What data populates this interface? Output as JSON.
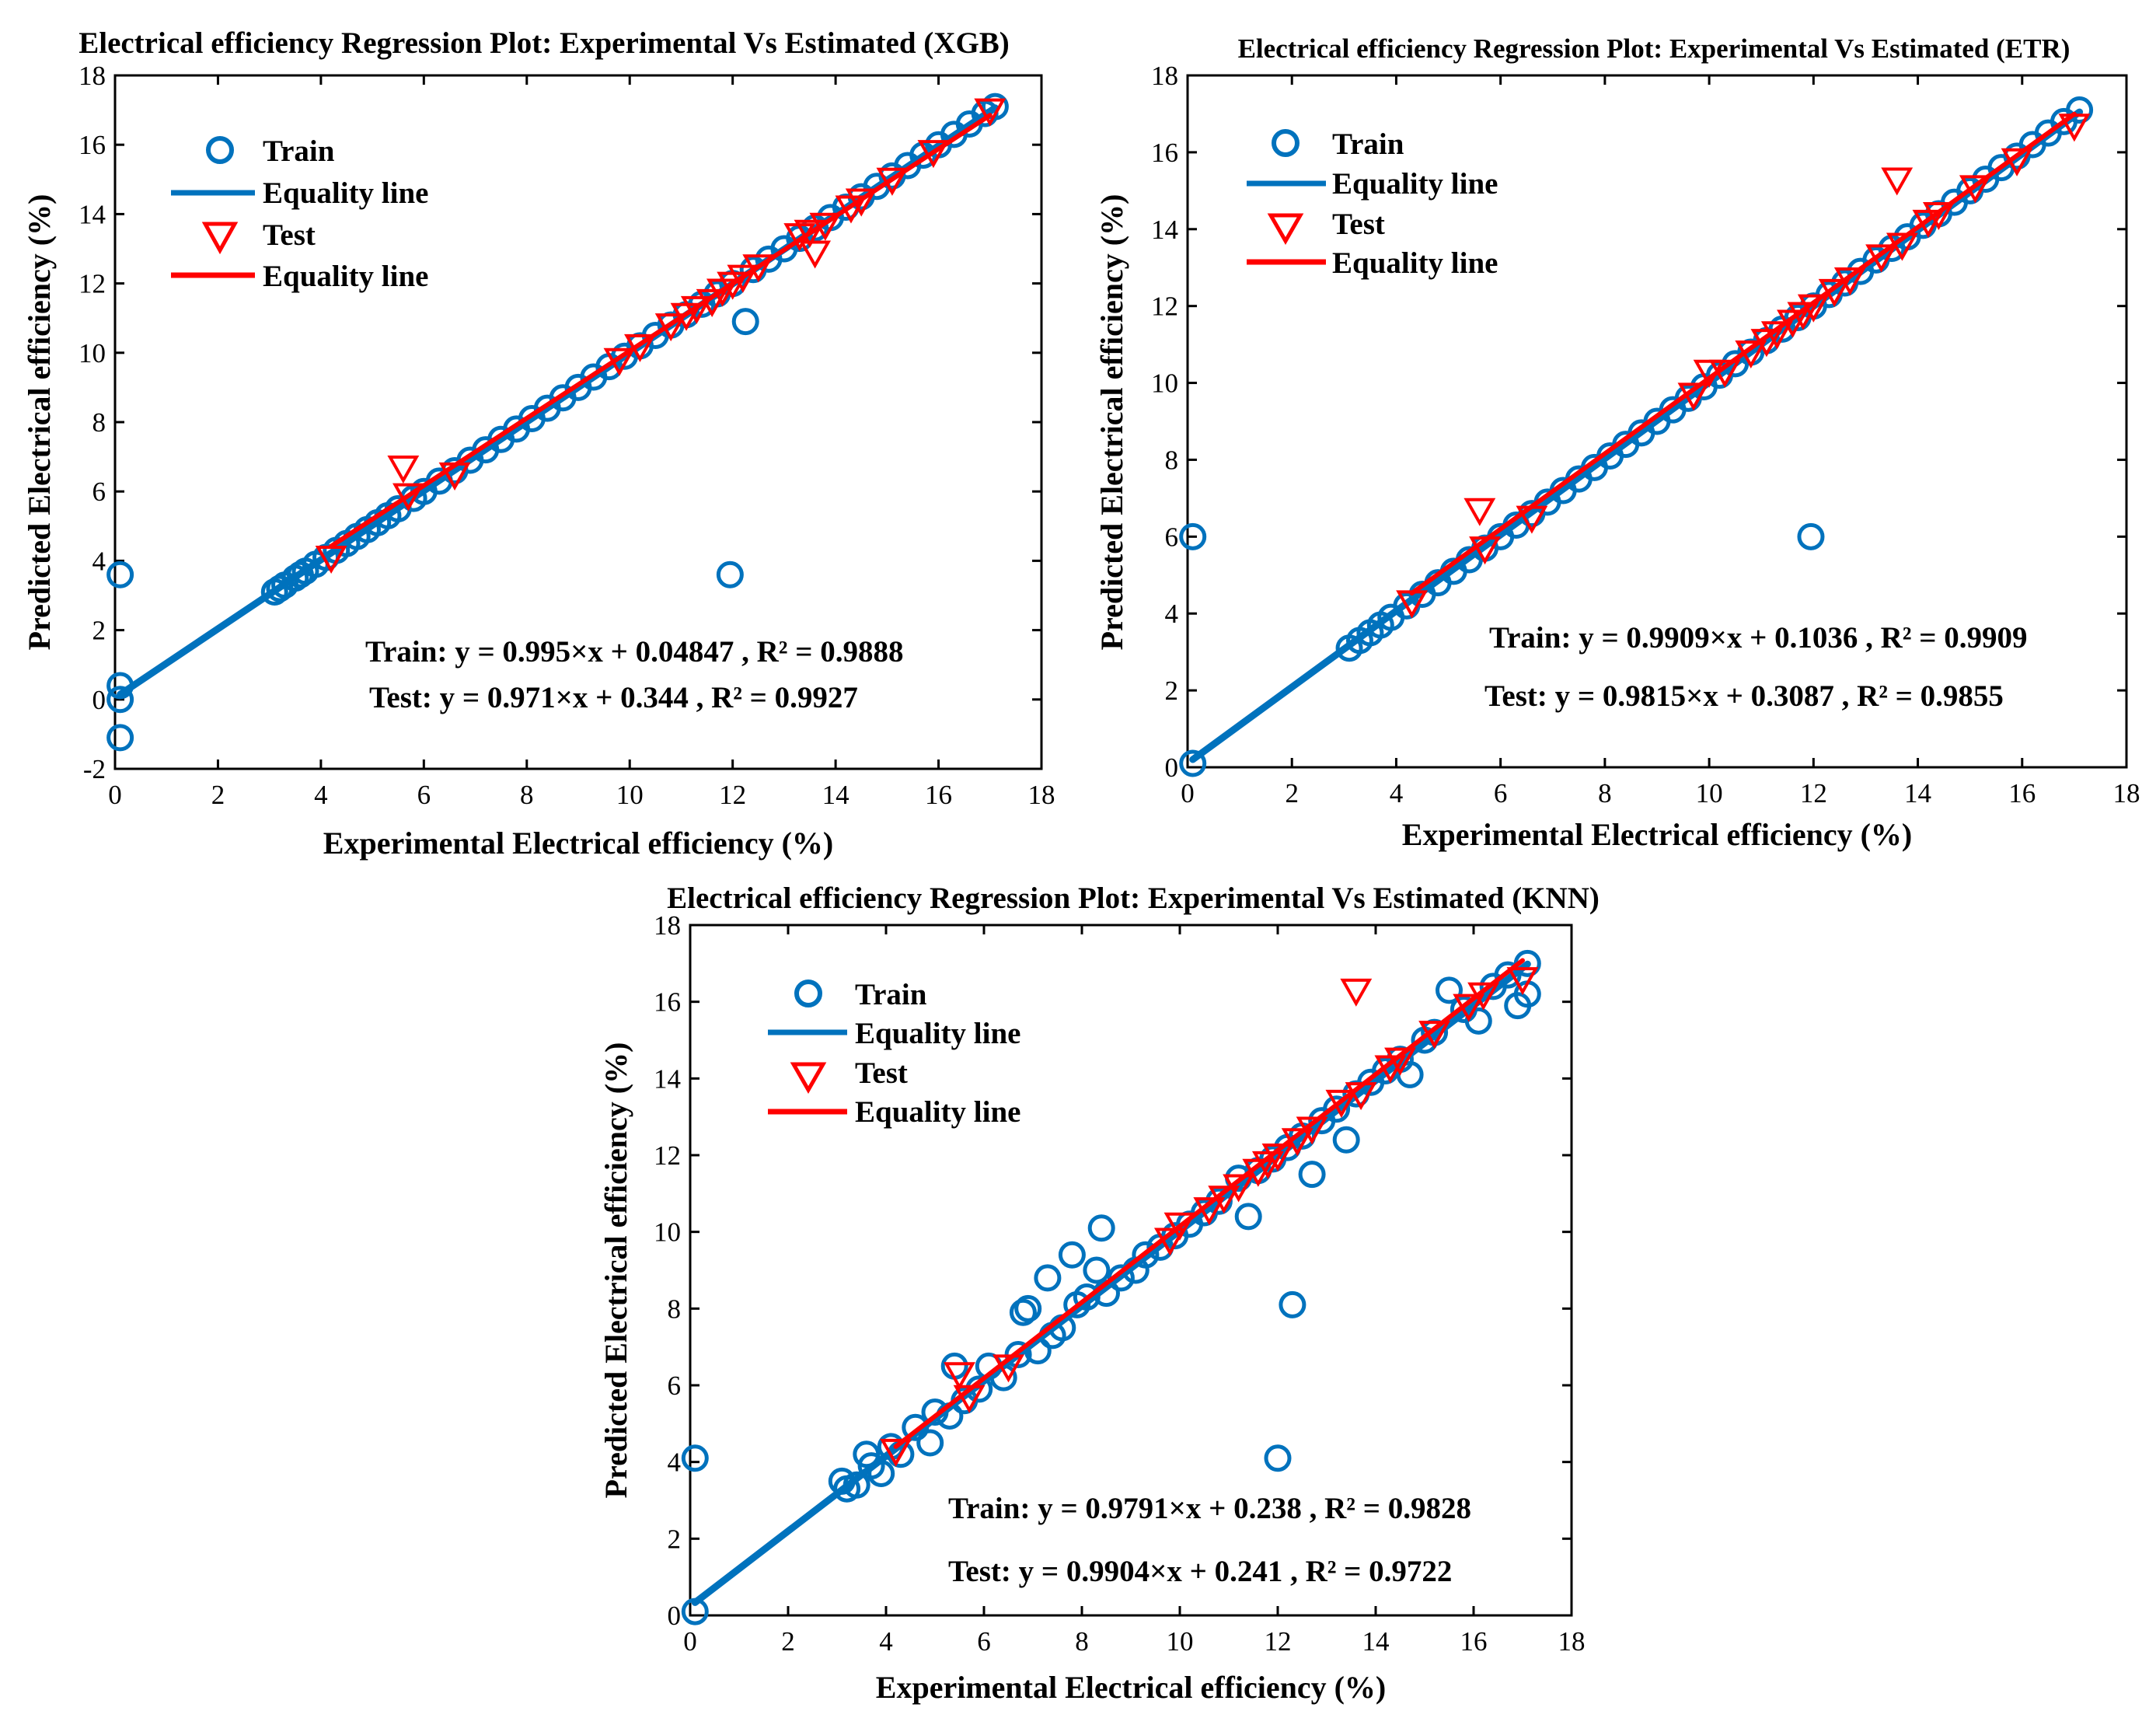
{
  "charts": [
    {
      "id": "xgb",
      "chart_data": {
        "type": "scatter",
        "title": "Electrical efficiency Regression Plot: Experimental Vs Estimated (XGB)",
        "xlabel": "Experimental Electrical efficiency (%)",
        "ylabel": "Predicted Electrical efficiency (%)",
        "xlim": [
          0,
          18
        ],
        "ylim": [
          -2,
          18
        ],
        "xticks": [
          "0",
          "2",
          "4",
          "6",
          "8",
          "10",
          "12",
          "14",
          "16",
          "18"
        ],
        "yticks": [
          "-2",
          "0",
          "2",
          "4",
          "6",
          "8",
          "10",
          "12",
          "14",
          "16",
          "18"
        ],
        "legend_position": "top-left",
        "legend": [
          {
            "label": "Train",
            "marker": "circle",
            "color": "#0072BD"
          },
          {
            "label": "Equality line",
            "marker": "line",
            "color": "#0072BD"
          },
          {
            "label": "Test",
            "marker": "triangle-down",
            "color": "#FF0000"
          },
          {
            "label": "Equality line",
            "marker": "line",
            "color": "#FF0000"
          }
        ],
        "annotations": [
          "Train: y = 0.995×x + 0.04847 , R² = 0.9888",
          "Test: y = 0.971×x + 0.344 , R² = 0.9927"
        ],
        "series": [
          {
            "name": "Train",
            "kind": "scatter",
            "color": "#0072BD",
            "x": [
              0.1,
              0.1,
              0.1,
              0.1,
              3.1,
              3.2,
              3.3,
              3.5,
              3.6,
              3.7,
              3.9,
              4.1,
              4.3,
              4.5,
              4.7,
              4.9,
              5.1,
              5.3,
              5.5,
              5.8,
              6.0,
              6.3,
              6.6,
              6.9,
              7.2,
              7.5,
              7.8,
              8.1,
              8.4,
              8.7,
              9.0,
              9.3,
              9.6,
              9.9,
              10.2,
              10.5,
              10.8,
              11.1,
              11.4,
              11.7,
              11.95,
              12.0,
              12.25,
              12.4,
              12.7,
              13.0,
              13.3,
              13.6,
              13.9,
              14.2,
              14.5,
              14.8,
              15.1,
              15.4,
              15.7,
              16.0,
              16.3,
              16.6,
              16.9,
              17.1
            ],
            "y": [
              3.6,
              0.4,
              0.0,
              -1.1,
              3.1,
              3.2,
              3.3,
              3.5,
              3.6,
              3.7,
              3.9,
              4.1,
              4.3,
              4.5,
              4.7,
              4.9,
              5.1,
              5.3,
              5.5,
              5.8,
              6.0,
              6.3,
              6.6,
              6.9,
              7.2,
              7.5,
              7.8,
              8.1,
              8.4,
              8.7,
              9.0,
              9.3,
              9.6,
              9.9,
              10.2,
              10.5,
              10.8,
              11.1,
              11.4,
              11.7,
              3.6,
              12.0,
              10.9,
              12.4,
              12.7,
              13.0,
              13.3,
              13.6,
              13.9,
              14.2,
              14.5,
              14.8,
              15.1,
              15.4,
              15.7,
              16.0,
              16.3,
              16.6,
              16.9,
              17.1
            ]
          },
          {
            "name": "Equality line",
            "kind": "line",
            "color": "#0072BD",
            "x": [
              0.1,
              17.1
            ],
            "y": [
              0.148,
              17.063
            ]
          },
          {
            "name": "Test",
            "kind": "scatter",
            "color": "#FF0000",
            "x": [
              4.2,
              5.6,
              5.7,
              6.6,
              9.8,
              10.2,
              10.8,
              11.1,
              11.3,
              11.6,
              11.8,
              12.0,
              12.2,
              12.5,
              13.3,
              13.5,
              13.6,
              13.8,
              14.3,
              14.5,
              15.1,
              15.9,
              17.0
            ],
            "y": [
              4.1,
              6.7,
              5.9,
              6.5,
              9.8,
              10.2,
              10.8,
              11.1,
              11.3,
              11.5,
              11.8,
              12.0,
              12.2,
              12.5,
              13.4,
              13.5,
              12.9,
              13.7,
              14.2,
              14.4,
              15.0,
              15.8,
              17.0
            ]
          },
          {
            "name": "Equality line",
            "kind": "line",
            "color": "#FF0000",
            "x": [
              4.2,
              17.0
            ],
            "y": [
              4.422,
              16.851
            ]
          }
        ]
      }
    },
    {
      "id": "etr",
      "chart_data": {
        "type": "scatter",
        "title": "Electrical efficiency Regression Plot: Experimental Vs Estimated (ETR)",
        "xlabel": "Experimental Electrical efficiency (%)",
        "ylabel": "Predicted Electrical efficiency (%)",
        "xlim": [
          0,
          18
        ],
        "ylim": [
          0,
          18
        ],
        "xticks": [
          "0",
          "2",
          "4",
          "6",
          "8",
          "10",
          "12",
          "14",
          "16",
          "18"
        ],
        "yticks": [
          "0",
          "2",
          "4",
          "6",
          "8",
          "10",
          "12",
          "14",
          "16",
          "18"
        ],
        "legend_position": "top-left",
        "legend": [
          {
            "label": "Train",
            "marker": "circle",
            "color": "#0072BD"
          },
          {
            "label": "Equality line",
            "marker": "line",
            "color": "#0072BD"
          },
          {
            "label": "Test",
            "marker": "triangle-down",
            "color": "#FF0000"
          },
          {
            "label": "Equality line",
            "marker": "line",
            "color": "#FF0000"
          }
        ],
        "annotations": [
          "Train: y = 0.9909×x + 0.1036 , R² = 0.9909",
          "Test: y = 0.9815×x + 0.3087 , R² = 0.9855"
        ],
        "series": [
          {
            "name": "Train",
            "kind": "scatter",
            "color": "#0072BD",
            "x": [
              0.1,
              0.1,
              3.1,
              3.3,
              3.5,
              3.7,
              3.9,
              4.2,
              4.5,
              4.8,
              5.1,
              5.4,
              5.7,
              6.0,
              6.3,
              6.6,
              6.9,
              7.2,
              7.5,
              7.8,
              8.1,
              8.4,
              8.7,
              9.0,
              9.3,
              9.6,
              9.9,
              10.2,
              10.5,
              10.8,
              11.1,
              11.4,
              11.7,
              11.95,
              12.0,
              12.3,
              12.6,
              12.9,
              13.2,
              13.5,
              13.8,
              14.1,
              14.4,
              14.7,
              15.0,
              15.3,
              15.6,
              15.9,
              16.2,
              16.5,
              16.8,
              17.1
            ],
            "y": [
              6.0,
              0.1,
              3.1,
              3.3,
              3.5,
              3.7,
              3.9,
              4.2,
              4.5,
              4.8,
              5.1,
              5.4,
              5.7,
              6.0,
              6.3,
              6.6,
              6.9,
              7.2,
              7.5,
              7.8,
              8.1,
              8.4,
              8.7,
              9.0,
              9.3,
              9.6,
              9.9,
              10.2,
              10.5,
              10.8,
              11.1,
              11.4,
              11.7,
              6.0,
              12.0,
              12.3,
              12.6,
              12.9,
              13.2,
              13.5,
              13.8,
              14.1,
              14.4,
              14.7,
              15.0,
              15.3,
              15.6,
              15.9,
              16.2,
              16.5,
              16.8,
              17.1
            ]
          },
          {
            "name": "Equality line",
            "kind": "line",
            "color": "#0072BD",
            "x": [
              0.1,
              17.1
            ],
            "y": [
              0.203,
              17.048
            ]
          },
          {
            "name": "Test",
            "kind": "scatter",
            "color": "#FF0000",
            "x": [
              4.3,
              5.6,
              5.7,
              6.6,
              9.7,
              10.0,
              10.3,
              10.8,
              11.1,
              11.3,
              11.6,
              11.8,
              12.0,
              12.4,
              12.7,
              13.3,
              13.6,
              13.7,
              14.2,
              14.4,
              15.1,
              15.9,
              17.0
            ],
            "y": [
              4.3,
              6.7,
              5.7,
              6.5,
              9.7,
              10.3,
              10.3,
              10.8,
              11.1,
              11.3,
              11.6,
              11.8,
              12.0,
              12.4,
              12.7,
              13.3,
              15.3,
              13.6,
              14.2,
              14.4,
              15.1,
              15.8,
              16.7
            ]
          },
          {
            "name": "Equality line",
            "kind": "line",
            "color": "#FF0000",
            "x": [
              4.3,
              17.0
            ],
            "y": [
              4.529,
              16.994
            ]
          }
        ]
      }
    },
    {
      "id": "knn",
      "chart_data": {
        "type": "scatter",
        "title": "Electrical efficiency Regression Plot: Experimental Vs Estimated (KNN)",
        "xlabel": "Experimental Electrical efficiency (%)",
        "ylabel": "Predicted Electrical efficiency (%)",
        "xlim": [
          0,
          18
        ],
        "ylim": [
          0,
          18
        ],
        "xticks": [
          "0",
          "2",
          "4",
          "6",
          "8",
          "10",
          "12",
          "14",
          "16",
          "18"
        ],
        "yticks": [
          "0",
          "2",
          "4",
          "6",
          "8",
          "10",
          "12",
          "14",
          "16",
          "18"
        ],
        "legend_position": "top-left",
        "legend": [
          {
            "label": "Train",
            "marker": "circle",
            "color": "#0072BD"
          },
          {
            "label": "Equality line",
            "marker": "line",
            "color": "#0072BD"
          },
          {
            "label": "Test",
            "marker": "triangle-down",
            "color": "#FF0000"
          },
          {
            "label": "Equality line",
            "marker": "line",
            "color": "#FF0000"
          }
        ],
        "annotations": [
          "Train: y = 0.9791×x + 0.238 , R² = 0.9828",
          "Test: y = 0.9904×x + 0.241 , R² = 0.9722"
        ],
        "series": [
          {
            "name": "Train",
            "kind": "scatter",
            "color": "#0072BD",
            "x": [
              0.1,
              0.1,
              3.1,
              3.2,
              3.4,
              3.6,
              3.7,
              3.9,
              4.1,
              4.3,
              4.6,
              4.9,
              5.0,
              5.3,
              5.4,
              5.6,
              5.9,
              6.1,
              6.4,
              6.7,
              6.8,
              6.9,
              7.1,
              7.3,
              7.4,
              7.6,
              7.8,
              7.9,
              8.1,
              8.3,
              8.4,
              8.5,
              8.8,
              9.1,
              9.3,
              9.6,
              9.9,
              10.2,
              10.5,
              10.8,
              11.2,
              11.4,
              11.6,
              11.9,
              12.0,
              12.2,
              12.3,
              12.5,
              12.7,
              12.9,
              13.2,
              13.4,
              13.6,
              13.9,
              14.2,
              14.5,
              14.7,
              15.0,
              15.2,
              15.5,
              15.8,
              16.1,
              16.4,
              16.7,
              16.9,
              17.1,
              17.1
            ],
            "y": [
              4.1,
              0.1,
              3.5,
              3.3,
              3.4,
              4.2,
              3.9,
              3.7,
              4.4,
              4.2,
              4.9,
              4.5,
              5.3,
              5.2,
              6.5,
              5.6,
              5.9,
              6.5,
              6.2,
              6.8,
              7.9,
              8.0,
              6.9,
              8.8,
              7.3,
              7.5,
              9.4,
              8.1,
              8.3,
              9.0,
              10.1,
              8.4,
              8.8,
              9.0,
              9.4,
              9.6,
              9.9,
              10.2,
              10.5,
              10.8,
              11.4,
              10.4,
              11.6,
              11.9,
              4.1,
              12.2,
              8.1,
              12.5,
              11.5,
              12.9,
              13.2,
              12.4,
              13.6,
              13.9,
              14.2,
              14.5,
              14.1,
              15.0,
              15.2,
              16.3,
              15.8,
              15.5,
              16.4,
              16.7,
              15.9,
              17.0,
              16.2
            ]
          },
          {
            "name": "Equality line",
            "kind": "line",
            "color": "#0072BD",
            "x": [
              0.1,
              17.1
            ],
            "y": [
              0.336,
              16.981
            ]
          },
          {
            "name": "Test",
            "kind": "scatter",
            "color": "#FF0000",
            "x": [
              4.2,
              5.5,
              5.7,
              6.5,
              9.8,
              10.0,
              10.6,
              10.9,
              11.2,
              11.6,
              11.8,
              12.0,
              12.4,
              12.7,
              13.3,
              13.6,
              13.7,
              14.3,
              14.5,
              15.2,
              15.9,
              16.2,
              17.0
            ],
            "y": [
              4.3,
              6.3,
              5.7,
              6.5,
              9.8,
              10.2,
              10.6,
              10.9,
              11.2,
              11.6,
              11.8,
              12.0,
              12.4,
              12.7,
              13.4,
              16.3,
              13.6,
              14.3,
              14.5,
              15.2,
              15.9,
              16.2,
              16.6
            ]
          },
          {
            "name": "Equality line",
            "kind": "line",
            "color": "#FF0000",
            "x": [
              4.2,
              17.0
            ],
            "y": [
              4.401,
              17.078
            ]
          }
        ]
      }
    }
  ]
}
